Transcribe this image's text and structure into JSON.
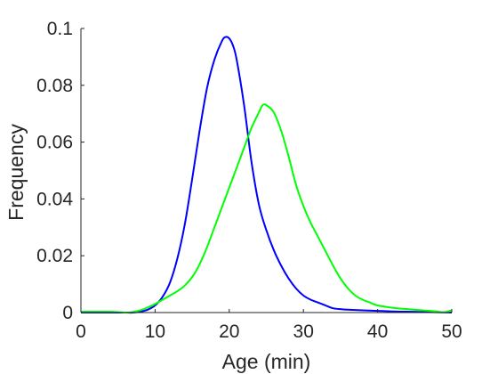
{
  "chart_data": {
    "type": "line",
    "title": "",
    "xlabel": "Age (min)",
    "ylabel": "Frequency",
    "xlim": [
      0,
      50
    ],
    "ylim": [
      0,
      0.1
    ],
    "xticks": [
      0,
      10,
      20,
      30,
      40,
      50
    ],
    "xtick_labels": [
      "0",
      "10",
      "20",
      "30",
      "40",
      "50"
    ],
    "yticks": [
      0,
      0.02,
      0.04,
      0.06,
      0.08,
      0.1
    ],
    "ytick_labels": [
      "0",
      "0.02",
      "0.04",
      "0.06",
      "0.08",
      "0.1"
    ],
    "grid": false,
    "legend": "none",
    "series": [
      {
        "color": "#0000ff",
        "x": [
          0,
          6,
          7,
          8,
          9,
          10,
          11,
          12,
          13,
          14,
          15,
          16,
          17,
          18,
          19,
          19.5,
          20,
          20.5,
          21,
          22,
          23,
          24,
          25,
          26,
          27,
          28,
          29,
          30,
          31,
          32,
          33,
          34,
          35,
          36,
          38,
          40,
          42,
          44,
          46,
          48,
          50
        ],
        "y": [
          0,
          0,
          0,
          0.0003,
          0.001,
          0.0025,
          0.0055,
          0.0105,
          0.019,
          0.031,
          0.047,
          0.064,
          0.079,
          0.089,
          0.0955,
          0.097,
          0.0965,
          0.094,
          0.089,
          0.073,
          0.053,
          0.038,
          0.029,
          0.022,
          0.0165,
          0.012,
          0.0085,
          0.006,
          0.0045,
          0.0035,
          0.0025,
          0.0015,
          0.0012,
          0.001,
          0.0008,
          0.0006,
          0.0004,
          0.0003,
          0.0002,
          0.0001,
          0
        ]
      },
      {
        "color": "#00ff00",
        "x": [
          0,
          4,
          6,
          7,
          8,
          9,
          10,
          11,
          12,
          13,
          14,
          15,
          16,
          17,
          18,
          19,
          20,
          21,
          22,
          23,
          24,
          24.5,
          25,
          26,
          27,
          28,
          29,
          30,
          31,
          32,
          33,
          34,
          35,
          36,
          37,
          38,
          39,
          40,
          42,
          44,
          46,
          48,
          49,
          50
        ],
        "y": [
          0.0003,
          0.0003,
          0,
          0.0002,
          0.0008,
          0.0018,
          0.003,
          0.0045,
          0.006,
          0.0075,
          0.0095,
          0.0125,
          0.017,
          0.023,
          0.03,
          0.037,
          0.044,
          0.051,
          0.058,
          0.065,
          0.0705,
          0.073,
          0.073,
          0.0705,
          0.064,
          0.055,
          0.045,
          0.0375,
          0.0315,
          0.0265,
          0.0215,
          0.0165,
          0.012,
          0.0085,
          0.006,
          0.0045,
          0.0035,
          0.0025,
          0.0017,
          0.0012,
          0.0008,
          0.0004,
          0.0001,
          0.0008
        ]
      }
    ]
  }
}
